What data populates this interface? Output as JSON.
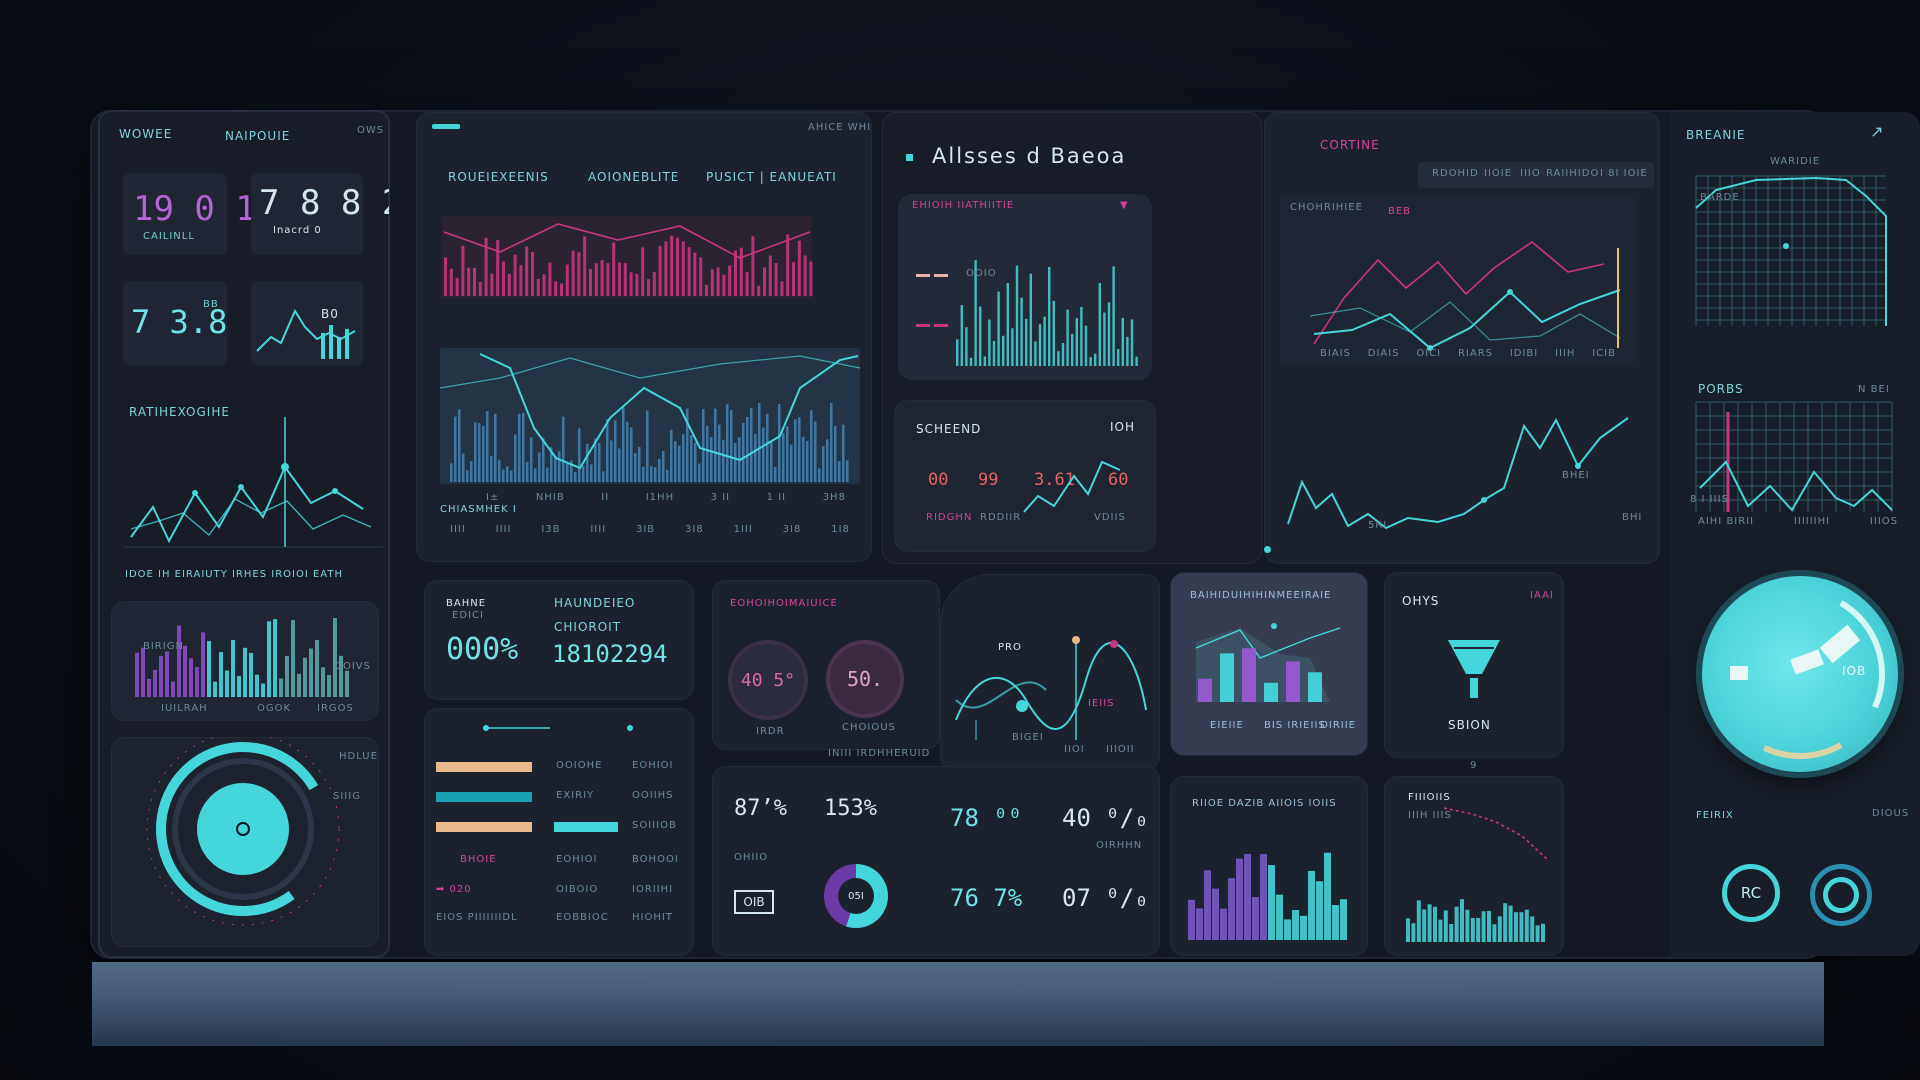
{
  "left_panel": {
    "tl": "WOWEE",
    "tc": "NAIPOUIE",
    "tr": "OWS",
    "m1": "19 0 1",
    "m1_sub": "CAILINLL",
    "m2": "7 8 8 2°",
    "m2_sub": "Inacrd 0",
    "m3": "7 3.8",
    "m3_sup": "BB",
    "m4": "B0",
    "section": "RATIHEXOGIHE",
    "footer": "IDOE IH  EIRAIUTY  IRHES  IROIOI EATH",
    "bars_l": "BIRIGN",
    "bars_r": "COIVS",
    "bars_b1": "IUILRAH",
    "bars_b2": "OGOK",
    "bars_b3": "IRGOS",
    "ring_r": "HDLUE",
    "ring_s": "SIIIG"
  },
  "center_top": {
    "tabs": [
      "ROUEIEXEENIS",
      "AOIONEBLITE",
      "PUSICT | EANUEATI"
    ],
    "corner": "AHICE WHIL",
    "axis": [
      "I±",
      "NHIB",
      "II",
      "I1HH",
      "3 II",
      "1 II",
      "3H8"
    ],
    "axis2": [
      "IIII",
      "IIII",
      "I3B",
      "IIII",
      "3IB",
      "3I8",
      "1III",
      "3I8",
      "1I8"
    ],
    "axis_l": "CHIASMHEK I"
  },
  "aligned": {
    "title": "Allsses d  Baeoa",
    "chart_hdr": "EHIOIH IIATHIITIE",
    "chart_hdr2": "▼",
    "chart_lbl": "OOIO",
    "screened": "SCHEEND",
    "screened_r": "IOH",
    "vals": [
      "00",
      "99",
      "3.61",
      "60"
    ],
    "val_sub": [
      "RIDGHN",
      "RDDIIR",
      "VDIIS"
    ]
  },
  "coretine": {
    "title": "CORTINE",
    "tabs": [
      "RDOHID",
      "IIOIE",
      "IIIO",
      "RAIIHIDO",
      "I 8I IOIE"
    ],
    "chart_lbl": "CHOHRIHIEE",
    "pt": "BEB",
    "xaxis": [
      "BIAIS",
      "DIAIS",
      "OICI",
      "RIARS",
      "IDIBI",
      "IIIH",
      "ICIB"
    ],
    "lower_l": "5RI",
    "lower_r": "BHI",
    "lower_pt": "BHEI"
  },
  "right_panel": {
    "title": "BREANIE",
    "sub": "WARIDIE",
    "ch_lbl": "BARDE",
    "porbs": "PORBS",
    "porbs_r": "N BEI",
    "axis_l": "5IIII",
    "axis_y": "8 I IIIS",
    "x": [
      "AIHI BIRII",
      "IIIIIIHI",
      "IIIOS"
    ],
    "gauge": "IOB",
    "foot_l": "FEIRIX",
    "foot_r": "DIOUS",
    "btn1": "RC"
  },
  "row2": {
    "bank_l1": "BAHNE",
    "bank_l2": "EDICI",
    "bank_pct": "000%",
    "hand_l1": "HAUNDEIEO",
    "hand_l2": "CHIOROIT",
    "hand_num": "18102294",
    "list": [
      {
        "a": "OOIOHE",
        "b": "EOHIOI"
      },
      {
        "a": "EXIRIY",
        "b": "OOIIHS"
      },
      {
        "a": "BOIIEIO",
        "b": "SOIIIOB"
      }
    ],
    "list2": [
      {
        "a": "BHOIE",
        "b": "EOHIOI",
        "c": "BOHOOI"
      },
      {
        "a": "➡  020",
        "b": "OIBOIO",
        "c": "IORIIHI"
      },
      {
        "a": "EIOS PIIIIIIIDL",
        "b": "EOBBIOC",
        "c": "HIOHIT"
      }
    ],
    "gauge_title": "EOHOIHOIMAIUICE",
    "g1": "40 5°",
    "g1_sub": "IRDR",
    "g2": "50.",
    "g2_sub": "CHOIOUS",
    "g2_sub2": "INIII IRDHHERUID",
    "wave_lbl": "PRO",
    "wave_r": "IEIIS",
    "wave_b": "BIGEI",
    "wave_x": [
      "IIOI",
      "IIIOII"
    ],
    "stats": [
      "87’%",
      "153%",
      "78 ⁰⁰",
      "40 ⁰/₀",
      "76 7%",
      "07 ⁰/₀"
    ],
    "stats_tiny": [
      "OHIIO",
      "OIRHHN"
    ],
    "donut": "05I",
    "boxes": "OIB",
    "purple_lbl": "BAIHIDUIHIHINMEEIRAIE",
    "purple_f1": "EIEIIE",
    "purple_f2": "BIS IRIEIIS",
    "purple_f3": "OIRIIE",
    "onyx": "OHYS",
    "onyx_r": "IAAI",
    "onyx_bottom": "SBION",
    "onyx_foot": "9",
    "bars_title": "RIIOE DAZIB AIIOIS IOIIS",
    "fade_title": "FIIIOIIS",
    "fade_lbl": "IIIH IIIS"
  },
  "colors": {
    "cyan": "#45d6dc",
    "pink": "#d2449a",
    "purple": "#8b4cc8",
    "panel": "#1b212d"
  }
}
